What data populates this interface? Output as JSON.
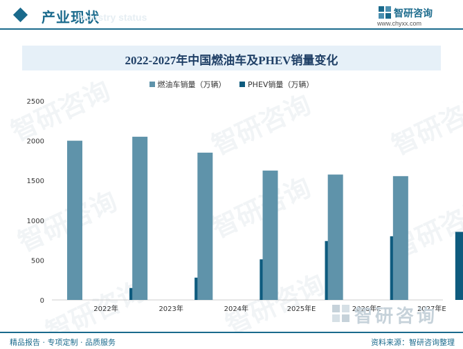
{
  "header": {
    "title": "产业现状",
    "ghost_text": "Industry status",
    "brand_name": "智研咨询",
    "brand_url": "www.chyxx.com"
  },
  "watermark_text": "智研咨询",
  "footer": {
    "left": "精品报告 · 专项定制 · 品质服务",
    "right": "资料来源：智研咨询整理"
  },
  "colors": {
    "accent": "#1a6a8c",
    "series1": "#5f93aa",
    "series2": "#0e5b7e"
  },
  "chart_data": {
    "type": "bar",
    "title": "2022-2027年中国燃油车及PHEV销量变化",
    "categories": [
      "2022年",
      "2023年",
      "2024年",
      "2025年E",
      "2026年E",
      "2027年E"
    ],
    "series": [
      {
        "name": "燃油车销量（万辆）",
        "values": [
          2000,
          2050,
          1850,
          1625,
          1575,
          1555
        ]
      },
      {
        "name": "PHEV销量（万辆）",
        "values": [
          150,
          280,
          510,
          740,
          800,
          855
        ]
      }
    ],
    "yticks": [
      "0",
      "500",
      "1000",
      "1500",
      "2000",
      "2500"
    ],
    "ylim": [
      0,
      2500
    ],
    "legend_position": "top-center",
    "grid": false
  }
}
